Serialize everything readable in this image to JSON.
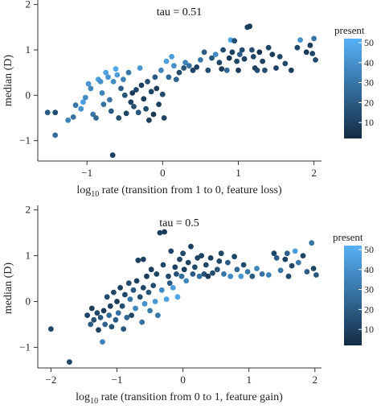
{
  "chart_data": [
    {
      "type": "scatter",
      "annotation": "tau = 0.51",
      "xlabel_prefix": "log",
      "xlabel_sub": "10",
      "xlabel_rest": " rate (transition from 1 to 0, feature loss)",
      "ylabel": "median (D)",
      "xlim": [
        -1.65,
        2.1
      ],
      "ylim": [
        -1.45,
        2.1
      ],
      "xticks": [
        -1,
        0,
        1,
        2
      ],
      "yticks": [
        -1,
        0,
        1,
        2
      ],
      "legend": {
        "title": "present",
        "ticks": [
          10,
          20,
          30,
          40,
          50
        ],
        "range": [
          2,
          52
        ],
        "placement": "right"
      },
      "grid": false,
      "points": [
        [
          -1.52,
          -0.38,
          20
        ],
        [
          -1.42,
          -0.38,
          15
        ],
        [
          -1.42,
          -0.88,
          25
        ],
        [
          -1.25,
          -0.55,
          35
        ],
        [
          -1.18,
          -0.48,
          28
        ],
        [
          -1.15,
          -0.22,
          30
        ],
        [
          -1.08,
          -0.3,
          40
        ],
        [
          -1.05,
          -0.15,
          45
        ],
        [
          -1.02,
          -0.05,
          38
        ],
        [
          -0.98,
          0.25,
          42
        ],
        [
          -0.95,
          0.15,
          36
        ],
        [
          -0.92,
          -0.42,
          30
        ],
        [
          -0.88,
          -0.5,
          25
        ],
        [
          -0.85,
          0.35,
          44
        ],
        [
          -0.82,
          0.3,
          40
        ],
        [
          -0.8,
          0.05,
          35
        ],
        [
          -0.78,
          -0.2,
          28
        ],
        [
          -0.75,
          0.5,
          46
        ],
        [
          -0.72,
          0.4,
          42
        ],
        [
          -0.7,
          -0.1,
          30
        ],
        [
          -0.68,
          -0.35,
          20
        ],
        [
          -0.65,
          0.3,
          38
        ],
        [
          -0.62,
          0.58,
          48
        ],
        [
          -0.6,
          0.45,
          44
        ],
        [
          -0.58,
          -0.5,
          15
        ],
        [
          -0.55,
          0.15,
          20
        ],
        [
          -0.52,
          0.35,
          35
        ],
        [
          -0.5,
          0.0,
          18
        ],
        [
          -0.48,
          -0.4,
          12
        ],
        [
          -0.45,
          0.5,
          30
        ],
        [
          -0.42,
          -0.15,
          10
        ],
        [
          -0.4,
          0.05,
          8
        ],
        [
          -0.38,
          -0.25,
          15
        ],
        [
          -0.35,
          0.12,
          12
        ],
        [
          -0.32,
          -0.38,
          18
        ],
        [
          -0.3,
          0.6,
          42
        ],
        [
          -0.28,
          0.22,
          10
        ],
        [
          -0.25,
          -0.08,
          8
        ],
        [
          -0.22,
          -0.3,
          14
        ],
        [
          -0.2,
          0.3,
          15
        ],
        [
          -0.18,
          -0.55,
          10
        ],
        [
          -0.15,
          0.08,
          12
        ],
        [
          -0.12,
          -0.42,
          6
        ],
        [
          -0.1,
          0.4,
          20
        ],
        [
          -0.08,
          0.15,
          8
        ],
        [
          -0.05,
          -0.2,
          10
        ],
        [
          -0.02,
          0.55,
          36
        ],
        [
          0.0,
          0.02,
          14
        ],
        [
          0.02,
          -0.5,
          12
        ],
        [
          0.05,
          0.75,
          45
        ],
        [
          0.08,
          0.4,
          25
        ],
        [
          0.12,
          0.85,
          44
        ],
        [
          0.15,
          0.65,
          40
        ],
        [
          0.18,
          0.35,
          22
        ],
        [
          0.22,
          0.5,
          14
        ],
        [
          0.28,
          0.6,
          18
        ],
        [
          0.3,
          0.72,
          35
        ],
        [
          0.35,
          0.65,
          28
        ],
        [
          0.4,
          0.55,
          12
        ],
        [
          0.45,
          0.62,
          10
        ],
        [
          0.5,
          0.78,
          30
        ],
        [
          0.55,
          0.95,
          20
        ],
        [
          0.6,
          0.55,
          14
        ],
        [
          0.65,
          0.82,
          18
        ],
        [
          0.7,
          0.9,
          38
        ],
        [
          0.75,
          0.72,
          12
        ],
        [
          0.78,
          0.58,
          8
        ],
        [
          0.8,
          1.0,
          14
        ],
        [
          0.85,
          0.55,
          25
        ],
        [
          0.88,
          0.82,
          6
        ],
        [
          0.9,
          1.22,
          48
        ],
        [
          0.92,
          0.95,
          10
        ],
        [
          0.95,
          1.2,
          15
        ],
        [
          0.98,
          0.75,
          12
        ],
        [
          1.0,
          0.55,
          8
        ],
        [
          1.02,
          0.9,
          20
        ],
        [
          1.05,
          1.0,
          14
        ],
        [
          1.08,
          0.8,
          10
        ],
        [
          1.12,
          1.5,
          12
        ],
        [
          1.15,
          1.52,
          8
        ],
        [
          1.18,
          1.0,
          15
        ],
        [
          1.2,
          0.85,
          12
        ],
        [
          1.22,
          0.6,
          10
        ],
        [
          1.25,
          0.55,
          14
        ],
        [
          1.28,
          0.95,
          6
        ],
        [
          1.32,
          0.75,
          10
        ],
        [
          1.35,
          0.55,
          16
        ],
        [
          1.4,
          1.05,
          12
        ],
        [
          1.45,
          0.9,
          8
        ],
        [
          1.5,
          0.6,
          10
        ],
        [
          1.55,
          0.85,
          12
        ],
        [
          1.62,
          0.7,
          14
        ],
        [
          1.7,
          0.55,
          10
        ],
        [
          1.78,
          1.05,
          12
        ],
        [
          1.82,
          1.22,
          40
        ],
        [
          1.9,
          0.95,
          8
        ],
        [
          1.95,
          1.1,
          10
        ],
        [
          1.98,
          0.92,
          12
        ],
        [
          2.0,
          1.25,
          30
        ],
        [
          2.02,
          0.78,
          14
        ],
        [
          -0.66,
          -1.32,
          10
        ]
      ]
    },
    {
      "type": "scatter",
      "annotation": "tau = 0.5",
      "xlabel_prefix": "log",
      "xlabel_sub": "10",
      "xlabel_rest": " rate (transition from 0 to 1, feature gain)",
      "ylabel": "median (D)",
      "xlim": [
        -2.2,
        2.1
      ],
      "ylim": [
        -1.45,
        2.1
      ],
      "xticks": [
        -2,
        -1,
        0,
        1,
        2
      ],
      "yticks": [
        -1,
        0,
        1,
        2
      ],
      "legend": {
        "title": "present",
        "ticks": [
          10,
          20,
          30,
          40,
          50
        ],
        "range": [
          2,
          52
        ],
        "placement": "right"
      },
      "grid": false,
      "points": [
        [
          -2.0,
          -0.6,
          12
        ],
        [
          -1.72,
          -1.32,
          12
        ],
        [
          -1.45,
          -0.3,
          10
        ],
        [
          -1.4,
          -0.5,
          20
        ],
        [
          -1.38,
          -0.15,
          8
        ],
        [
          -1.35,
          -0.4,
          15
        ],
        [
          -1.3,
          -0.25,
          12
        ],
        [
          -1.28,
          -0.62,
          10
        ],
        [
          -1.25,
          -0.35,
          18
        ],
        [
          -1.22,
          -0.88,
          35
        ],
        [
          -1.2,
          -0.2,
          8
        ],
        [
          -1.18,
          -0.5,
          22
        ],
        [
          -1.15,
          0.1,
          14
        ],
        [
          -1.12,
          -0.3,
          25
        ],
        [
          -1.1,
          -0.1,
          10
        ],
        [
          -1.08,
          -0.55,
          16
        ],
        [
          -1.05,
          0.2,
          12
        ],
        [
          -1.02,
          -0.4,
          20
        ],
        [
          -1.0,
          0.0,
          8
        ],
        [
          -0.98,
          -0.25,
          28
        ],
        [
          -0.95,
          0.3,
          10
        ],
        [
          -0.92,
          -0.1,
          15
        ],
        [
          -0.9,
          -0.6,
          18
        ],
        [
          -0.88,
          0.15,
          12
        ],
        [
          -0.85,
          -0.35,
          24
        ],
        [
          -0.82,
          0.4,
          14
        ],
        [
          -0.8,
          0.05,
          30
        ],
        [
          -0.78,
          -0.3,
          12
        ],
        [
          -0.75,
          0.25,
          18
        ],
        [
          -0.72,
          -0.15,
          36
        ],
        [
          -0.7,
          0.45,
          10
        ],
        [
          -0.68,
          0.9,
          10
        ],
        [
          -0.65,
          0.1,
          15
        ],
        [
          -0.62,
          -0.45,
          28
        ],
        [
          -0.6,
          0.3,
          12
        ],
        [
          -0.58,
          -0.05,
          40
        ],
        [
          -0.55,
          0.55,
          8
        ],
        [
          -0.52,
          0.2,
          18
        ],
        [
          -0.5,
          -0.2,
          32
        ],
        [
          -0.48,
          0.7,
          10
        ],
        [
          -0.45,
          0.35,
          14
        ],
        [
          -0.42,
          0.0,
          42
        ],
        [
          -0.4,
          0.6,
          12
        ],
        [
          -0.38,
          -0.3,
          30
        ],
        [
          -0.35,
          1.5,
          10
        ],
        [
          -0.32,
          0.25,
          38
        ],
        [
          -0.3,
          0.8,
          12
        ],
        [
          -0.28,
          1.52,
          8
        ],
        [
          -0.25,
          0.05,
          46
        ],
        [
          -0.22,
          0.55,
          14
        ],
        [
          -0.2,
          0.4,
          20
        ],
        [
          -0.18,
          1.1,
          12
        ],
        [
          -0.15,
          0.3,
          44
        ],
        [
          -0.12,
          0.75,
          10
        ],
        [
          -0.1,
          0.6,
          16
        ],
        [
          -0.08,
          0.1,
          48
        ],
        [
          -0.05,
          0.92,
          12
        ],
        [
          -0.02,
          0.55,
          26
        ],
        [
          0.0,
          1.05,
          14
        ],
        [
          0.02,
          0.7,
          10
        ],
        [
          0.05,
          0.45,
          36
        ],
        [
          0.08,
          0.85,
          12
        ],
        [
          0.12,
          1.2,
          10
        ],
        [
          0.15,
          0.6,
          20
        ],
        [
          0.18,
          0.75,
          14
        ],
        [
          0.22,
          0.95,
          12
        ],
        [
          0.25,
          0.55,
          28
        ],
        [
          0.28,
          1.0,
          10
        ],
        [
          0.32,
          0.6,
          16
        ],
        [
          0.35,
          0.8,
          12
        ],
        [
          0.38,
          0.55,
          8
        ],
        [
          0.42,
          0.95,
          10
        ],
        [
          0.45,
          0.62,
          14
        ],
        [
          0.52,
          0.7,
          18
        ],
        [
          0.58,
          1.05,
          12
        ],
        [
          0.62,
          0.6,
          30
        ],
        [
          0.68,
          0.85,
          20
        ],
        [
          0.72,
          0.55,
          38
        ],
        [
          0.78,
          0.98,
          12
        ],
        [
          0.82,
          0.7,
          25
        ],
        [
          0.88,
          0.55,
          42
        ],
        [
          0.92,
          0.8,
          14
        ],
        [
          0.98,
          0.65,
          30
        ],
        [
          1.05,
          0.55,
          20
        ],
        [
          1.12,
          0.72,
          36
        ],
        [
          1.2,
          0.6,
          28
        ],
        [
          1.3,
          0.58,
          34
        ],
        [
          1.38,
          1.05,
          12
        ],
        [
          1.42,
          0.95,
          20
        ],
        [
          1.48,
          0.68,
          30
        ],
        [
          1.55,
          0.92,
          10
        ],
        [
          1.6,
          0.55,
          14
        ],
        [
          1.65,
          0.78,
          12
        ],
        [
          1.7,
          1.1,
          44
        ],
        [
          1.75,
          0.85,
          30
        ],
        [
          1.82,
          1.0,
          12
        ],
        [
          1.88,
          0.65,
          20
        ],
        [
          1.95,
          1.28,
          30
        ],
        [
          1.98,
          0.72,
          12
        ],
        [
          2.02,
          0.58,
          18
        ],
        [
          1.58,
          1.05,
          22
        ],
        [
          0.55,
          0.88,
          12
        ],
        [
          -0.6,
          0.92,
          10
        ]
      ]
    }
  ]
}
